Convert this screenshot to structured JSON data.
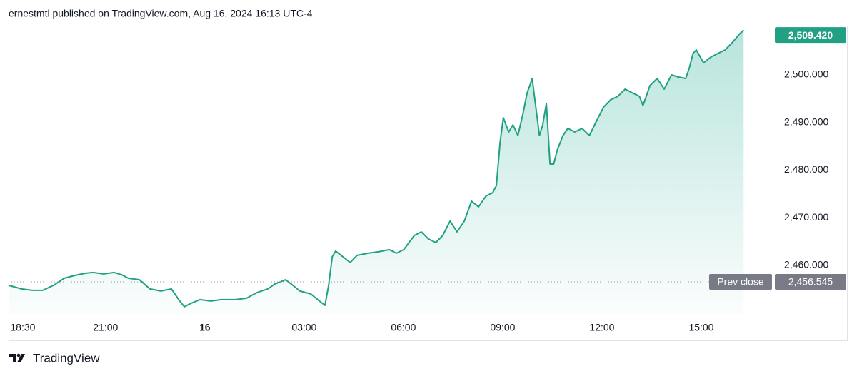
{
  "header": "ernestmtl published on TradingView.com, Aug 16, 2024 16:13 UTC-4",
  "footer": "TradingView",
  "chart_data": {
    "type": "area",
    "x": [
      18.07,
      18.46,
      18.78,
      19.1,
      19.43,
      19.75,
      20.08,
      20.4,
      20.62,
      20.94,
      21.26,
      21.48,
      21.69,
      22.02,
      22.34,
      22.67,
      22.99,
      23.21,
      23.38,
      23.59,
      23.85,
      24.18,
      24.5,
      24.93,
      25.26,
      25.58,
      25.9,
      26.12,
      26.44,
      26.66,
      26.87,
      27.2,
      27.41,
      27.63,
      27.74,
      27.85,
      27.95,
      28.17,
      28.39,
      28.6,
      28.93,
      29.25,
      29.57,
      29.79,
      30.01,
      30.33,
      30.54,
      30.76,
      30.98,
      31.19,
      31.41,
      31.62,
      31.84,
      32.06,
      32.27,
      32.49,
      32.7,
      32.81,
      32.92,
      33.02,
      33.18,
      33.31,
      33.46,
      33.61,
      33.74,
      33.82,
      33.89,
      34.0,
      34.11,
      34.21,
      34.32,
      34.43,
      34.54,
      34.65,
      34.82,
      34.97,
      35.18,
      35.4,
      35.62,
      35.83,
      36.05,
      36.26,
      36.48,
      36.7,
      36.91,
      37.13,
      37.24,
      37.45,
      37.67,
      37.88,
      38.1,
      38.31,
      38.53,
      38.64,
      38.75,
      38.85,
      39.07,
      39.29,
      39.5,
      39.72,
      39.93,
      40.15,
      40.28
    ],
    "series": [
      {
        "color": "#22a084",
        "values": [
          2455.81,
          2455.06,
          2454.76,
          2454.76,
          2455.81,
          2457.3,
          2457.9,
          2458.35,
          2458.5,
          2458.2,
          2458.5,
          2458.05,
          2457.3,
          2457.0,
          2455.06,
          2454.61,
          2455.06,
          2452.81,
          2451.31,
          2452.06,
          2452.81,
          2452.51,
          2452.81,
          2452.81,
          2453.11,
          2454.31,
          2455.06,
          2456.11,
          2457.0,
          2455.81,
          2454.61,
          2454.01,
          2452.81,
          2451.61,
          2455.81,
          2461.8,
          2463.0,
          2461.8,
          2460.6,
          2462.1,
          2462.55,
          2462.85,
          2463.3,
          2462.55,
          2463.3,
          2466.29,
          2467.04,
          2465.54,
          2464.79,
          2466.29,
          2469.29,
          2467.04,
          2469.29,
          2473.48,
          2472.28,
          2474.53,
          2475.28,
          2476.78,
          2485.77,
          2491.01,
          2488.01,
          2489.51,
          2487.26,
          2491.76,
          2496.25,
          2497.75,
          2499.25,
          2493.26,
          2487.26,
          2489.51,
          2494.0,
          2481.27,
          2481.27,
          2484.27,
          2487.26,
          2488.76,
          2488.01,
          2488.76,
          2487.26,
          2490.26,
          2493.26,
          2494.75,
          2495.5,
          2497.0,
          2496.25,
          2495.5,
          2493.56,
          2497.75,
          2499.25,
          2497.0,
          2500.0,
          2499.55,
          2499.25,
          2501.49,
          2504.49,
          2505.24,
          2502.54,
          2503.74,
          2504.49,
          2505.24,
          2506.74,
          2508.54,
          2509.42
        ]
      }
    ],
    "xlim": [
      18.07,
      41.18
    ],
    "xticks": [
      {
        "value": 18.5,
        "label": "18:30"
      },
      {
        "value": 21,
        "label": "21:00"
      },
      {
        "value": 24,
        "label": "16"
      },
      {
        "value": 27,
        "label": "03:00"
      },
      {
        "value": 30,
        "label": "06:00"
      },
      {
        "value": 33,
        "label": "09:00"
      },
      {
        "value": 36,
        "label": "12:00"
      },
      {
        "value": 39,
        "label": "15:00"
      }
    ],
    "ylim": [
      2449.8,
      2510.34
    ],
    "yticks": [
      {
        "value": 2460,
        "label": "2,460.000"
      },
      {
        "value": 2470,
        "label": "2,470.000"
      },
      {
        "value": 2480,
        "label": "2,480.000"
      },
      {
        "value": 2490,
        "label": "2,490.000"
      },
      {
        "value": 2500,
        "label": "2,500.000"
      }
    ],
    "last_price": {
      "value": 2509.42,
      "label": "2,509.420",
      "color": "#22a084"
    },
    "prev_close": {
      "name": "Prev close",
      "value": 2456.545,
      "label": "2,456.545",
      "color": "#787b86"
    }
  }
}
